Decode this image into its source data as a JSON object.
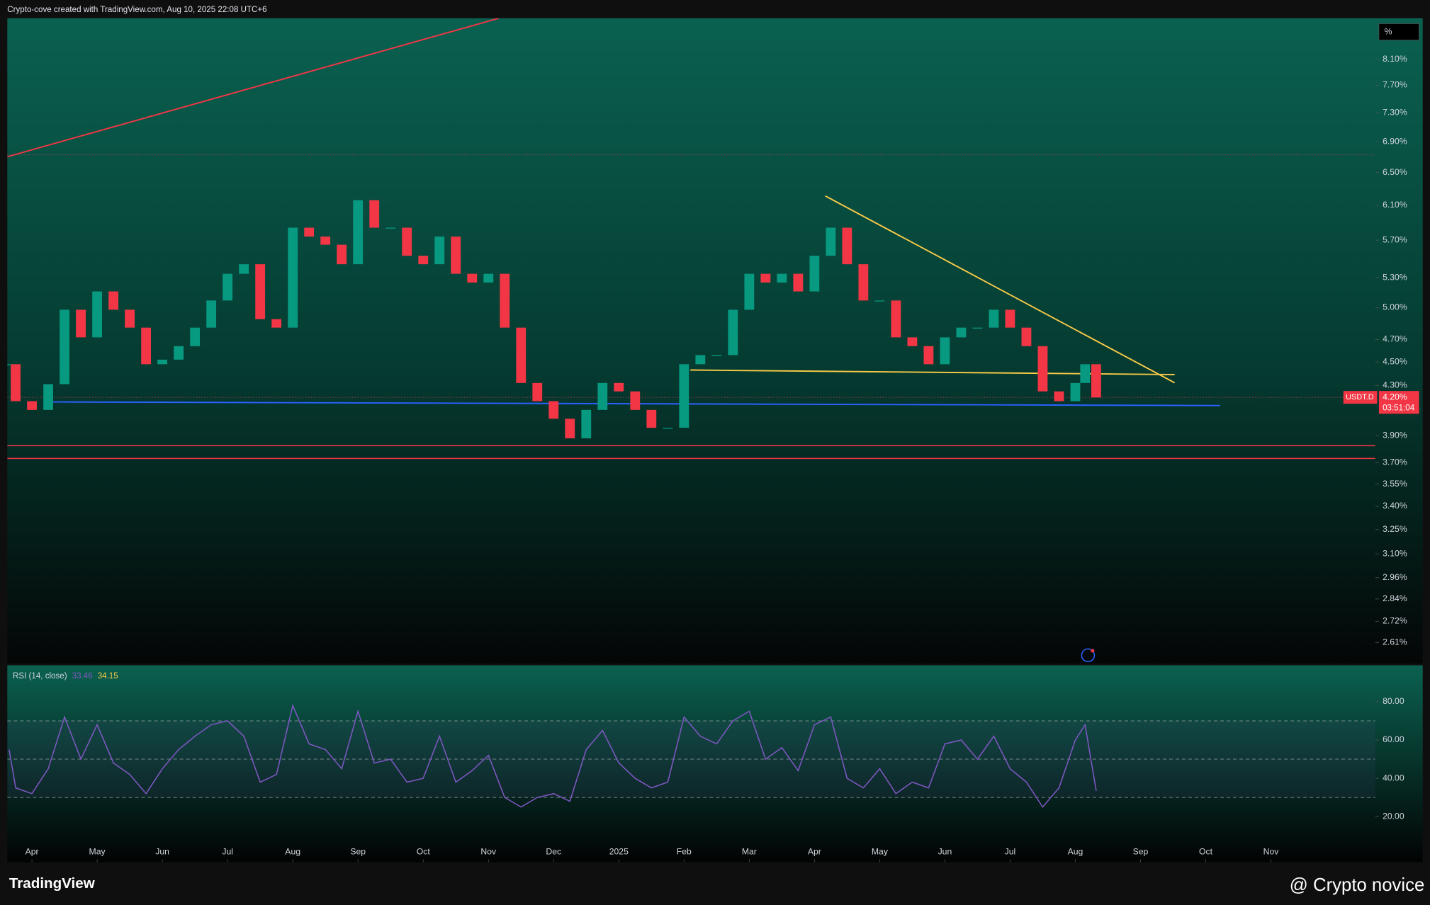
{
  "header": {
    "text": "Crypto-cove created with TradingView.com, Aug 10, 2025 22:08 UTC+6"
  },
  "footer": {
    "brand": "TradingView",
    "author": "@ Crypto novice"
  },
  "chart_data": [
    {
      "type": "candlestick",
      "log_scale": true,
      "unit_label": "%",
      "symbol_label": "USDT.D",
      "last_price": {
        "value": 4.2,
        "label": "4.20%"
      },
      "countdown": "03:51:04",
      "up_color": "#089981",
      "down_color": "#f23645",
      "x": [
        -0.35,
        -0.25,
        0,
        0.25,
        0.5,
        0.75,
        1,
        1.25,
        1.5,
        1.75,
        2,
        2.25,
        2.5,
        2.75,
        3,
        3.25,
        3.5,
        3.75,
        4,
        4.25,
        4.5,
        4.75,
        5,
        5.25,
        5.5,
        5.75,
        6,
        6.25,
        6.5,
        6.75,
        7,
        7.25,
        7.5,
        7.75,
        8,
        8.25,
        8.5,
        8.75,
        9,
        9.25,
        9.5,
        9.75,
        10,
        10.25,
        10.5,
        10.75,
        11,
        11.25,
        11.5,
        11.75,
        12,
        12.25,
        12.5,
        12.75,
        13,
        13.25,
        13.5,
        13.75,
        14,
        14.25,
        14.5,
        14.75,
        15,
        15.25,
        15.5,
        15.75,
        16,
        16.15,
        16.32
      ],
      "values": [
        4.48,
        4.17,
        4.1,
        4.31,
        4.98,
        4.72,
        5.16,
        4.98,
        4.81,
        4.48,
        4.52,
        4.64,
        4.81,
        5.07,
        5.34,
        5.44,
        4.89,
        4.81,
        5.84,
        5.74,
        5.65,
        5.44,
        6.16,
        5.84,
        5.84,
        5.53,
        5.44,
        5.74,
        5.34,
        5.25,
        5.34,
        4.81,
        4.32,
        4.17,
        4.03,
        3.88,
        4.1,
        4.32,
        4.25,
        4.1,
        3.96,
        3.96,
        4.48,
        4.56,
        4.56,
        4.98,
        5.34,
        5.25,
        5.34,
        5.16,
        5.53,
        5.84,
        5.44,
        5.07,
        5.07,
        4.72,
        4.64,
        4.48,
        4.72,
        4.81,
        4.81,
        4.98,
        4.81,
        4.64,
        4.25,
        4.17,
        4.32,
        4.48,
        4.2
      ],
      "xlim": [
        -0.378,
        20.6
      ],
      "ylim": [
        2.506,
        8.77
      ],
      "yticks": [
        {
          "value": 8.1,
          "label": "8.10%"
        },
        {
          "value": 7.7,
          "label": "7.70%"
        },
        {
          "value": 7.3,
          "label": "7.30%"
        },
        {
          "value": 6.9,
          "label": "6.90%"
        },
        {
          "value": 6.5,
          "label": "6.50%"
        },
        {
          "value": 6.1,
          "label": "6.10%"
        },
        {
          "value": 5.7,
          "label": "5.70%"
        },
        {
          "value": 5.3,
          "label": "5.30%"
        },
        {
          "value": 5.0,
          "label": "5.00%"
        },
        {
          "value": 4.7,
          "label": "4.70%"
        },
        {
          "value": 4.5,
          "label": "4.50%"
        },
        {
          "value": 4.3,
          "label": "4.30%"
        },
        {
          "value": 3.9,
          "label": "3.90%"
        },
        {
          "value": 3.7,
          "label": "3.70%"
        },
        {
          "value": 3.55,
          "label": "3.55%"
        },
        {
          "value": 3.4,
          "label": "3.40%"
        },
        {
          "value": 3.25,
          "label": "3.25%"
        },
        {
          "value": 3.1,
          "label": "3.10%"
        },
        {
          "value": 2.96,
          "label": "2.96%"
        },
        {
          "value": 2.84,
          "label": "2.84%"
        },
        {
          "value": 2.72,
          "label": "2.72%"
        },
        {
          "value": 2.61,
          "label": "2.61%"
        }
      ]
    },
    {
      "type": "line",
      "title": "RSI (14, close)",
      "readouts": [
        {
          "value": 33.46,
          "color": "#7e57c2"
        },
        {
          "value": 34.15,
          "color": "#f7c948"
        }
      ],
      "band_lines": [
        70,
        50,
        30
      ],
      "xlim": [
        -0.378,
        20.6
      ],
      "ylim": [
        -3.3,
        99
      ],
      "x": [
        -0.35,
        -0.25,
        0,
        0.25,
        0.5,
        0.75,
        1,
        1.25,
        1.5,
        1.75,
        2,
        2.25,
        2.5,
        2.75,
        3,
        3.25,
        3.5,
        3.75,
        4,
        4.25,
        4.5,
        4.75,
        5,
        5.25,
        5.5,
        5.75,
        6,
        6.25,
        6.5,
        6.75,
        7,
        7.25,
        7.5,
        7.75,
        8,
        8.25,
        8.5,
        8.75,
        9,
        9.25,
        9.5,
        9.75,
        10,
        10.25,
        10.5,
        10.75,
        11,
        11.25,
        11.5,
        11.75,
        12,
        12.25,
        12.5,
        12.75,
        13,
        13.25,
        13.5,
        13.75,
        14,
        14.25,
        14.5,
        14.75,
        15,
        15.25,
        15.5,
        15.75,
        16,
        16.15,
        16.32
      ],
      "series": [
        {
          "color": "#7e57c2",
          "values": [
            55,
            35,
            32,
            45,
            72,
            50,
            68,
            48,
            42,
            32,
            45,
            55,
            62,
            68,
            70,
            62,
            38,
            42,
            78,
            58,
            55,
            45,
            75,
            48,
            50,
            38,
            40,
            62,
            38,
            44,
            52,
            30,
            25,
            30,
            32,
            28,
            55,
            65,
            48,
            40,
            35,
            38,
            72,
            62,
            58,
            70,
            75,
            50,
            56,
            44,
            68,
            72,
            40,
            35,
            45,
            32,
            38,
            35,
            58,
            60,
            50,
            62,
            45,
            38,
            25,
            35,
            60,
            68,
            33.46
          ]
        }
      ],
      "yticks": [
        {
          "value": 80,
          "label": "80.00"
        },
        {
          "value": 60,
          "label": "60.00"
        },
        {
          "value": 40,
          "label": "40.00"
        },
        {
          "value": 20,
          "label": "20.00"
        }
      ],
      "xticks": [
        {
          "value": 0,
          "label": "Apr"
        },
        {
          "value": 1,
          "label": "May"
        },
        {
          "value": 2,
          "label": "Jun"
        },
        {
          "value": 3,
          "label": "Jul"
        },
        {
          "value": 4,
          "label": "Aug"
        },
        {
          "value": 5,
          "label": "Sep"
        },
        {
          "value": 6,
          "label": "Oct"
        },
        {
          "value": 7,
          "label": "Nov"
        },
        {
          "value": 8,
          "label": "Dec"
        },
        {
          "value": 9,
          "label": "2025"
        },
        {
          "value": 10,
          "label": "Feb"
        },
        {
          "value": 11,
          "label": "Mar"
        },
        {
          "value": 12,
          "label": "Apr"
        },
        {
          "value": 13,
          "label": "May"
        },
        {
          "value": 14,
          "label": "Jun"
        },
        {
          "value": 15,
          "label": "Jul"
        },
        {
          "value": 16,
          "label": "Aug"
        },
        {
          "value": 17,
          "label": "Sep"
        },
        {
          "value": 18,
          "label": "Oct"
        },
        {
          "value": 19,
          "label": "Nov"
        }
      ]
    }
  ]
}
